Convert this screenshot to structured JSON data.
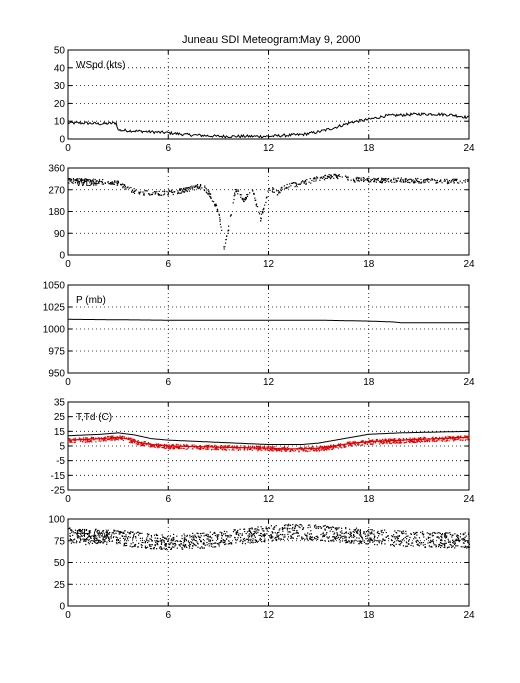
{
  "title": {
    "station": "Juneau SDI Meteogram:",
    "date": "May  9, 2000"
  },
  "chart_data": [
    {
      "type": "line",
      "panel": "wspd",
      "label": "WSpd (kts)",
      "ylim": [
        0,
        50
      ],
      "yticks": [
        0,
        10,
        20,
        30,
        40,
        50
      ],
      "xlim": [
        0,
        24
      ],
      "xticks": [
        0,
        6,
        12,
        18,
        24
      ],
      "grid": true,
      "series": [
        {
          "color": "#000000",
          "style": "line",
          "x": [
            0,
            1,
            2,
            2.9,
            3.0,
            4,
            5,
            6,
            7,
            8,
            9,
            10,
            11,
            12,
            13,
            14,
            15,
            16,
            17,
            18,
            19,
            20,
            21,
            22,
            23,
            24
          ],
          "y": [
            9,
            9,
            8.5,
            9,
            5,
            4.5,
            4,
            3.5,
            2.5,
            2,
            1.5,
            1.5,
            1.5,
            1.5,
            2,
            2.5,
            4,
            6.5,
            9.5,
            11,
            13,
            13.5,
            14,
            14,
            13.5,
            12
          ]
        }
      ]
    },
    {
      "type": "scatter",
      "panel": "wdir",
      "label": "WDir",
      "ylim": [
        0,
        360
      ],
      "yticks": [
        0,
        90,
        180,
        270,
        360
      ],
      "xlim": [
        0,
        24
      ],
      "xticks": [
        0,
        6,
        12,
        18,
        24
      ],
      "grid": true,
      "series": [
        {
          "color": "#000000",
          "style": "dots",
          "x": [
            0,
            1,
            2,
            3,
            3.5,
            4,
            5,
            6,
            7,
            7.5,
            8,
            8.5,
            9,
            9.3,
            9.6,
            10,
            10.5,
            11,
            11.5,
            12,
            12.5,
            13,
            14,
            15,
            16,
            17,
            18,
            19,
            20,
            21,
            22,
            23,
            24
          ],
          "y": [
            310,
            308,
            305,
            300,
            280,
            265,
            255,
            260,
            270,
            280,
            290,
            250,
            180,
            25,
            120,
            275,
            230,
            275,
            150,
            280,
            260,
            285,
            300,
            320,
            330,
            315,
            312,
            310,
            312,
            310,
            308,
            307,
            305
          ]
        }
      ]
    },
    {
      "type": "line",
      "panel": "pressure",
      "label": "P (mb)",
      "ylim": [
        950,
        1050
      ],
      "yticks": [
        950,
        975,
        1000,
        1025,
        1050
      ],
      "xlim": [
        0,
        24
      ],
      "xticks": [
        0,
        6,
        12,
        18,
        24
      ],
      "grid": true,
      "series": [
        {
          "color": "#000000",
          "style": "line",
          "x": [
            0,
            6,
            12,
            15,
            18,
            19.5,
            20,
            24
          ],
          "y": [
            1011,
            1010,
            1010,
            1010,
            1009,
            1008,
            1007,
            1007
          ]
        }
      ]
    },
    {
      "type": "line",
      "panel": "temperature",
      "label": "T,Td (C)",
      "ylim": [
        -25,
        35
      ],
      "yticks": [
        -25,
        -15,
        -5,
        5,
        15,
        25,
        35
      ],
      "xlim": [
        0,
        24
      ],
      "xticks": [
        0,
        6,
        12,
        18,
        24
      ],
      "grid": true,
      "series": [
        {
          "color": "#000000",
          "style": "line",
          "x": [
            0,
            1,
            2,
            3,
            4,
            5,
            6,
            8,
            10,
            12,
            13,
            14,
            15,
            16,
            17,
            18,
            20,
            22,
            24
          ],
          "y": [
            12,
            12.5,
            13,
            14,
            12.5,
            10,
            9,
            8,
            7,
            6,
            6,
            6,
            7,
            9,
            11,
            13,
            14,
            14.5,
            15
          ]
        },
        {
          "color": "#e00000",
          "style": "dots",
          "x": [
            0,
            1,
            2,
            3,
            3.5,
            4,
            5,
            6,
            8,
            10,
            12,
            13,
            14,
            15,
            16,
            17,
            18,
            20,
            22,
            24
          ],
          "y": [
            9,
            9.5,
            10,
            11,
            10,
            8,
            6,
            5,
            4.5,
            4,
            3.5,
            3,
            3,
            3.5,
            5,
            7,
            8,
            9,
            10,
            11
          ]
        }
      ]
    },
    {
      "type": "scatter",
      "panel": "rh",
      "label": "RH (%)",
      "ylim": [
        0,
        100
      ],
      "yticks": [
        0,
        25,
        50,
        75,
        100
      ],
      "xlim": [
        0,
        24
      ],
      "xticks": [
        0,
        6,
        12,
        18,
        24
      ],
      "grid": true,
      "series": [
        {
          "color": "#000000",
          "style": "dots",
          "x": [
            0,
            1,
            2,
            3,
            4,
            5,
            6,
            7,
            8,
            9,
            10,
            11,
            12,
            13,
            14,
            15,
            16,
            17,
            18,
            19,
            20,
            21,
            22,
            23,
            24
          ],
          "y": [
            82,
            80,
            80,
            79,
            77,
            75,
            74,
            75,
            76,
            78,
            80,
            82,
            84,
            86,
            86,
            85,
            83,
            82,
            80,
            79,
            78,
            77,
            77,
            76,
            76
          ]
        }
      ]
    }
  ]
}
